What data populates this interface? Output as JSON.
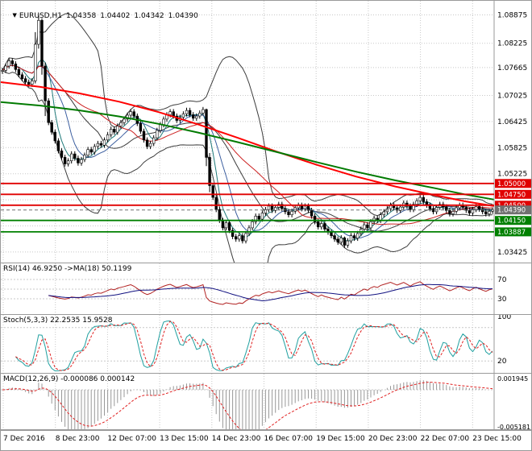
{
  "title": {
    "dropdown_icon": "▼",
    "symbol": "EURUSD,H1",
    "open": "1.04358",
    "high": "1.04402",
    "low": "1.04342",
    "close": "1.04390"
  },
  "colors": {
    "background": "#FFFFFF",
    "grid": "#C8C8C8",
    "panel_border": "#9A9A9A",
    "axis_text": "#000000",
    "candle_border": "#000000",
    "candle_up_fill": "#FFFFFF",
    "candle_down_fill": "#000000",
    "bollinger": "#3C3C3C",
    "sma_fast": "#1F7A7A",
    "sma_mid": "#3C5FA0",
    "sma_slow": "#CC2020",
    "ma_red": "#FF0000",
    "ma_green": "#007A00",
    "level_red": "#E00000",
    "level_green": "#008000",
    "level_gray": "#707070",
    "label_text": "#FFFFFF",
    "rsi_line": "#B22222",
    "rsi_ma": "#101080",
    "stoch_k": "#20A0A0",
    "stoch_d": "#E02020",
    "macd_hist": "#989898",
    "macd_signal": "#E02020"
  },
  "chart_data": {
    "type": "candlestick",
    "symbol": "EURUSD",
    "timeframe": "H1",
    "x_labels": [
      "7 Dec 2016",
      "8 Dec 23:00",
      "12 Dec 07:00",
      "13 Dec 15:00",
      "14 Dec 23:00",
      "16 Dec 07:00",
      "19 Dec 15:00",
      "20 Dec 23:00",
      "22 Dec 07:00",
      "23 Dec 15:00"
    ],
    "y_axis_labels": [
      "1.08875",
      "1.08225",
      "1.07665",
      "1.07025",
      "1.06425",
      "1.05825",
      "1.05225",
      "1.03425"
    ],
    "grid_prices": [
      1.08875,
      1.08225,
      1.07665,
      1.07025,
      1.06425,
      1.05825,
      1.05225,
      1.04625,
      1.04025,
      1.03425
    ],
    "price_min": 1.032,
    "price_max": 1.092,
    "candles": {
      "first_open": 1.0758,
      "default_wick": 0.0006,
      "closes": [
        1.076,
        1.077,
        1.0782,
        1.0775,
        1.0762,
        1.075,
        1.0741,
        1.0733,
        1.0728,
        1.0736,
        1.082,
        1.0875,
        1.077,
        1.069,
        1.064,
        1.0618,
        1.0598,
        1.0575,
        1.056,
        1.0545,
        1.0552,
        1.0568,
        1.0558,
        1.0547,
        1.0555,
        1.0565,
        1.0578,
        1.0572,
        1.0585,
        1.0592,
        1.0588,
        1.06,
        1.0612,
        1.0625,
        1.0618,
        1.0632,
        1.064,
        1.0648,
        1.0657,
        1.0665,
        1.0655,
        1.0638,
        1.062,
        1.06,
        1.0585,
        1.0592,
        1.0605,
        1.0622,
        1.0635,
        1.0648,
        1.0658,
        1.0665,
        1.0655,
        1.0645,
        1.0652,
        1.066,
        1.0668,
        1.0658,
        1.065,
        1.0655,
        1.0662,
        1.067,
        1.056,
        1.0495,
        1.0468,
        1.044,
        1.0415,
        1.0398,
        1.041,
        1.0392,
        1.0378,
        1.0372,
        1.038,
        1.0368,
        1.0385,
        1.0398,
        1.0412,
        1.0425,
        1.0418,
        1.0432,
        1.044,
        1.0448,
        1.0438,
        1.0445,
        1.0452,
        1.0442,
        1.0435,
        1.0428,
        1.0436,
        1.0444,
        1.045,
        1.0442,
        1.0448,
        1.0438,
        1.0425,
        1.0412,
        1.04,
        1.0408,
        1.0395,
        1.0388,
        1.038,
        1.0372,
        1.0365,
        1.0375,
        1.0358,
        1.0368,
        1.038,
        1.0374,
        1.0385,
        1.0395,
        1.0405,
        1.0398,
        1.0412,
        1.042,
        1.0415,
        1.0428,
        1.0435,
        1.0442,
        1.045,
        1.0444,
        1.0438,
        1.0446,
        1.0455,
        1.0448,
        1.044,
        1.0452,
        1.046,
        1.0468,
        1.0458,
        1.045,
        1.0442,
        1.0435,
        1.0445,
        1.0452,
        1.0446,
        1.0438,
        1.043,
        1.0436,
        1.0444,
        1.045,
        1.0445,
        1.0438,
        1.0432,
        1.044,
        1.0447,
        1.0441,
        1.0435,
        1.043,
        1.0436,
        1.0439
      ],
      "wick_overrides": {
        "10": [
          1.0848,
          1.073
        ],
        "11": [
          1.08875,
          1.081
        ],
        "12": [
          1.088,
          1.075
        ],
        "13": [
          1.0778,
          1.0655
        ],
        "62": [
          1.0672,
          1.054
        ],
        "63": [
          1.057,
          1.048
        ],
        "104": [
          1.0378,
          1.0352
        ]
      }
    },
    "overlays": {
      "bollinger_period": 20,
      "bollinger_dev": 2,
      "ma_red_anchors": [
        [
          0,
          1.0733
        ],
        [
          0.08,
          1.0722
        ],
        [
          0.16,
          1.0707
        ],
        [
          0.24,
          1.0688
        ],
        [
          0.32,
          1.0664
        ],
        [
          0.4,
          1.0636
        ],
        [
          0.48,
          1.0605
        ],
        [
          0.56,
          1.0573
        ],
        [
          0.64,
          1.0543
        ],
        [
          0.72,
          1.0516
        ],
        [
          0.8,
          1.0493
        ],
        [
          0.88,
          1.0473
        ],
        [
          0.94,
          1.0459
        ],
        [
          1,
          1.0448
        ]
      ],
      "ma_green_anchors": [
        [
          0,
          1.0687
        ],
        [
          0.08,
          1.0679
        ],
        [
          0.16,
          1.0668
        ],
        [
          0.24,
          1.0654
        ],
        [
          0.32,
          1.0637
        ],
        [
          0.4,
          1.0617
        ],
        [
          0.48,
          1.0595
        ],
        [
          0.56,
          1.0572
        ],
        [
          0.64,
          1.0549
        ],
        [
          0.72,
          1.0527
        ],
        [
          0.8,
          1.0507
        ],
        [
          0.88,
          1.0489
        ],
        [
          0.94,
          1.0475
        ],
        [
          1,
          1.0463
        ]
      ]
    },
    "levels": [
      {
        "price": 1.05,
        "label": "1.05000",
        "color": "red"
      },
      {
        "price": 1.0475,
        "label": "1.04750",
        "color": "red"
      },
      {
        "price": 1.045,
        "label": "1.04500",
        "color": "red"
      },
      {
        "price": 1.0439,
        "label": "1.04390",
        "color": "gray"
      },
      {
        "price": 1.0415,
        "label": "1.04150",
        "color": "green"
      },
      {
        "price": 1.03887,
        "label": "1.03887",
        "color": "green"
      }
    ],
    "indicators": {
      "rsi": {
        "label": "RSI(14) 46.9250 ->MA(18) 50.1199",
        "period": 14,
        "ma_period": 18,
        "levels": [
          70,
          50,
          30
        ],
        "axis_labels": [
          {
            "value": 70,
            "text": "70"
          },
          {
            "value": 30,
            "text": "30"
          }
        ],
        "range": [
          0,
          100
        ]
      },
      "stoch": {
        "label": "Stoch(5,3,3) 22.2535 15.9528",
        "levels": [
          80,
          20
        ],
        "axis_labels": [
          {
            "value": 100,
            "text": "100"
          },
          {
            "value": 20,
            "text": "20"
          }
        ],
        "range": [
          0,
          100
        ]
      },
      "macd": {
        "label": "MACD(12,26,9) -0.000086 0.000142",
        "levels": [
          0
        ],
        "axis_labels": [
          {
            "value": 0.001945,
            "text": "0.001945"
          },
          {
            "value": -0.005181,
            "text": "-0.005181"
          }
        ],
        "range": [
          -0.005181,
          0.001945
        ]
      }
    }
  }
}
